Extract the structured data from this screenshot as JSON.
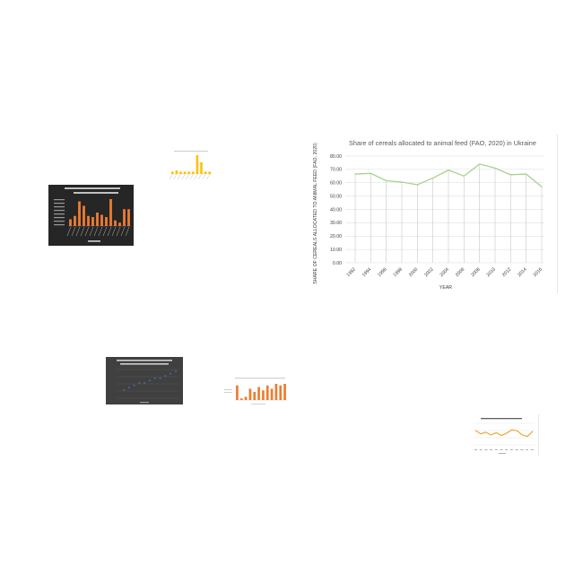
{
  "chart_data": [
    {
      "type": "line",
      "title": "Share of cereals allocated to animal feed (FAO, 2020)  in Ukraine",
      "xlabel": "YEAR",
      "ylabel": "SHARE OF CEREALS ALLOCATED TO ANIMAL FEED (FAO, 2020)",
      "x": [
        "1992",
        "1994",
        "1996",
        "1998",
        "2000",
        "2002",
        "2004",
        "2006",
        "2008",
        "2010",
        "2012",
        "2014",
        "2016"
      ],
      "series": [
        {
          "values": [
            66.5,
            67.0,
            61.5,
            60.5,
            58.5,
            63.5,
            69.5,
            65.0,
            74.0,
            71.0,
            66.0,
            66.5,
            57.0
          ]
        }
      ],
      "yticks": [
        "0.00",
        "10.00",
        "20.00",
        "30.00",
        "40.00",
        "50.00",
        "60.00",
        "70.00",
        "80.00"
      ],
      "ylim": [
        0,
        80
      ],
      "grid": true,
      "line_color": "#a9d18e"
    },
    {
      "type": "bar",
      "note": "small thumbnail, dark background, text unreadable",
      "values": [
        6,
        9,
        22,
        18,
        9,
        8,
        12,
        10,
        8,
        24,
        5,
        3,
        15,
        15
      ],
      "bar_color": "#ed7d31",
      "background": "#262626"
    },
    {
      "type": "bar",
      "note": "small thumbnail, text unreadable",
      "values": [
        2,
        3,
        2,
        2,
        2,
        2,
        16,
        10,
        2,
        2
      ],
      "bar_color": "#ffc000"
    },
    {
      "type": "scatter",
      "note": "small thumbnail, dark background, text unreadable",
      "values": [
        2,
        3,
        4,
        5,
        5,
        6,
        7,
        7,
        8,
        9,
        10
      ],
      "point_color": "#4472c4",
      "background": "#404040"
    },
    {
      "type": "bar",
      "note": "small thumbnail, text unreadable",
      "values": [
        9,
        1,
        2,
        7,
        5,
        8,
        6,
        9,
        7,
        10,
        9,
        10
      ],
      "bar_color": "#ed7d31"
    },
    {
      "type": "line",
      "note": "small thumbnail, text unreadable",
      "values": [
        70,
        55,
        62,
        50,
        60,
        48,
        58,
        72,
        68,
        50,
        44,
        66
      ],
      "line_color": "#f0a830"
    }
  ]
}
